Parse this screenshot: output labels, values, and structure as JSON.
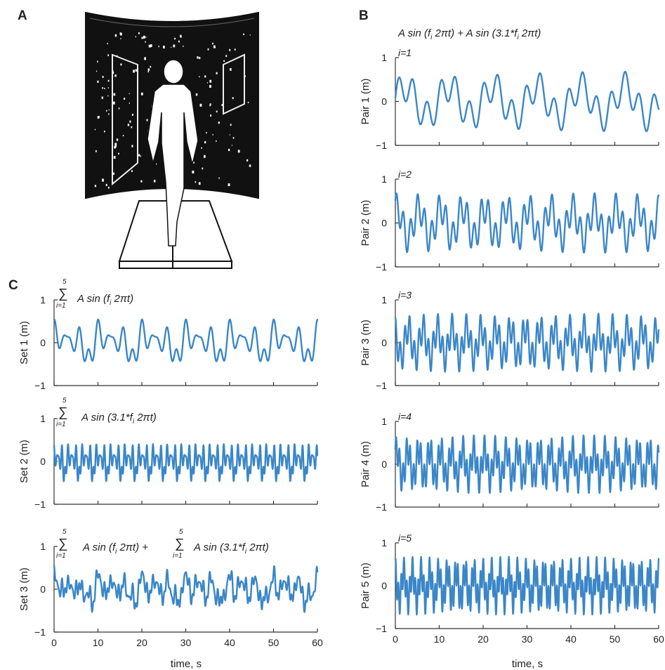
{
  "panel_labels": {
    "a": "A",
    "b": "B",
    "c": "C"
  },
  "panel_b": {
    "title_parts": [
      "A sin (f",
      "i",
      " 2πt) + A sin (3.1*f",
      "i",
      " 2πt)"
    ]
  },
  "panel_c": {
    "formula_set1": "A sin (f_i 2πt)",
    "formula_set2": "A sin (3.1*f_i 2πt)",
    "sum_symbol": "∑",
    "sum_upper": "5",
    "sum_lower": "i=1",
    "plus": "+"
  },
  "xlabel": "time, s",
  "colors": {
    "line": "#3a86c8",
    "axis": "#333333"
  },
  "illustration": {
    "kind": "person walking on treadmill inside curved virtual-reality screen with dot flow field"
  },
  "chart_data": [
    {
      "type": "line",
      "ylabel": "Set 1 (m)",
      "inset_label": "",
      "formula_parts": [
        "A sin (f",
        "i",
        " 2πt)"
      ],
      "x_range": [
        0,
        60
      ],
      "ylim": [
        -1,
        1
      ],
      "xticks": [
        0,
        10,
        20,
        30,
        40,
        50,
        60
      ],
      "yticks": [
        -1,
        0,
        1
      ],
      "series": [
        {
          "fundamental_f_hz": 0.1,
          "components": "sum i=1..5 of A sin(f_i 2πt)"
        }
      ]
    },
    {
      "type": "line",
      "ylabel": "Set 2 (m)",
      "inset_label": "",
      "formula_parts": [
        "A sin (3.1*f",
        "i",
        " 2πt)"
      ],
      "x_range": [
        0,
        60
      ],
      "ylim": [
        -1,
        1
      ],
      "xticks": [
        0,
        10,
        20,
        30,
        40,
        50,
        60
      ],
      "yticks": [
        -1,
        0,
        1
      ],
      "series": [
        {
          "fundamental_f_hz": 0.31,
          "components": "sum i=1..5 of A sin(3.1*f_i 2πt)"
        }
      ]
    },
    {
      "type": "line",
      "ylabel": "Set 3 (m)",
      "inset_label": "",
      "formula_parts": [
        "A sin (f",
        "i",
        " 2πt) + ",
        "A sin (3.1*f",
        "i",
        " 2πt)"
      ],
      "x_range": [
        0,
        60
      ],
      "ylim": [
        -1,
        1
      ],
      "xticks": [
        0,
        10,
        20,
        30,
        40,
        50,
        60
      ],
      "yticks": [
        -1,
        0,
        1
      ],
      "series": [
        {
          "components": "Set 1 + Set 2"
        }
      ]
    },
    {
      "type": "line",
      "ylabel": "Pair 1 (m)",
      "inset_label": "i=1",
      "x_range": [
        0,
        60
      ],
      "ylim": [
        -1,
        1
      ],
      "xticks": [
        0,
        10,
        20,
        30,
        40,
        50,
        60
      ],
      "yticks": [
        -1,
        0,
        1
      ],
      "series": [
        {
          "f_hz": 0.1
        }
      ]
    },
    {
      "type": "line",
      "ylabel": "Pair 2 (m)",
      "inset_label": "i=2",
      "x_range": [
        0,
        60
      ],
      "ylim": [
        -1,
        1
      ],
      "xticks": [
        0,
        10,
        20,
        30,
        40,
        50,
        60
      ],
      "yticks": [
        -1,
        0,
        1
      ],
      "series": [
        {
          "f_hz": 0.2
        }
      ]
    },
    {
      "type": "line",
      "ylabel": "Pair 3 (m)",
      "inset_label": "i=3",
      "x_range": [
        0,
        60
      ],
      "ylim": [
        -1,
        1
      ],
      "xticks": [
        0,
        10,
        20,
        30,
        40,
        50,
        60
      ],
      "yticks": [
        -1,
        0,
        1
      ],
      "series": [
        {
          "f_hz": 0.3
        }
      ]
    },
    {
      "type": "line",
      "ylabel": "Pair 4 (m)",
      "inset_label": "i=4",
      "x_range": [
        0,
        60
      ],
      "ylim": [
        -1,
        1
      ],
      "xticks": [
        0,
        10,
        20,
        30,
        40,
        50,
        60
      ],
      "yticks": [
        -1,
        0,
        1
      ],
      "series": [
        {
          "f_hz": 0.4
        }
      ]
    },
    {
      "type": "line",
      "ylabel": "Pair 5 (m)",
      "inset_label": "i=5",
      "x_range": [
        0,
        60
      ],
      "ylim": [
        -1,
        1
      ],
      "xticks": [
        0,
        10,
        20,
        30,
        40,
        50,
        60
      ],
      "yticks": [
        -1,
        0,
        1
      ],
      "series": [
        {
          "f_hz": 0.5
        }
      ]
    }
  ]
}
